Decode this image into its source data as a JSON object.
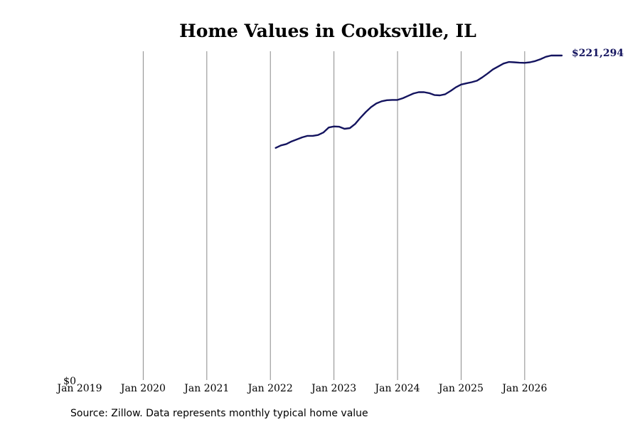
{
  "chart_data": {
    "type": "line",
    "title": "Home Values in Cooksville, IL",
    "xlabel": "",
    "ylabel": "",
    "x_ticks": [
      "Jan 2019",
      "Jan 2020",
      "Jan 2021",
      "Jan 2022",
      "Jan 2023",
      "Jan 2024",
      "Jan 2025",
      "Jan 2026"
    ],
    "y_ticks": [
      "$0"
    ],
    "xlim": [
      "2019-01",
      "2026-08"
    ],
    "ylim": [
      0,
      221294
    ],
    "grid": "vertical",
    "line_color": "#14145f",
    "series": [
      {
        "end_label": "$221,294",
        "x": [
          "2022-02",
          "2022-03",
          "2022-04",
          "2022-05",
          "2022-06",
          "2022-07",
          "2022-08",
          "2022-09",
          "2022-10",
          "2022-11",
          "2022-12",
          "2023-01",
          "2023-02",
          "2023-03",
          "2023-04",
          "2023-05",
          "2023-06",
          "2023-07",
          "2023-08",
          "2023-09",
          "2023-10",
          "2023-11",
          "2023-12",
          "2024-01",
          "2024-02",
          "2024-03",
          "2024-04",
          "2024-05",
          "2024-06",
          "2024-07",
          "2024-08",
          "2024-09",
          "2024-10",
          "2024-11",
          "2024-12",
          "2025-01",
          "2025-02",
          "2025-03",
          "2025-04",
          "2025-05",
          "2025-06",
          "2025-07",
          "2025-08",
          "2025-09",
          "2025-10",
          "2025-11",
          "2025-12",
          "2026-01",
          "2026-02",
          "2026-03",
          "2026-04",
          "2026-05",
          "2026-06",
          "2026-07",
          "2026-08"
        ],
        "values": [
          158300,
          160000,
          160900,
          162700,
          164100,
          165500,
          166500,
          166500,
          167100,
          168800,
          172200,
          172900,
          172700,
          171300,
          171800,
          174600,
          178900,
          182700,
          186100,
          188600,
          190100,
          190800,
          191000,
          191000,
          192200,
          193800,
          195400,
          196300,
          196300,
          195600,
          194300,
          194100,
          194900,
          197100,
          199600,
          201500,
          202300,
          203100,
          204100,
          206400,
          209000,
          211800,
          213800,
          215800,
          216900,
          216700,
          216400,
          216300,
          216700,
          217500,
          218800,
          220400,
          221294,
          221294,
          221294
        ]
      }
    ],
    "source_note": "Source: Zillow. Data represents monthly typical home value"
  }
}
